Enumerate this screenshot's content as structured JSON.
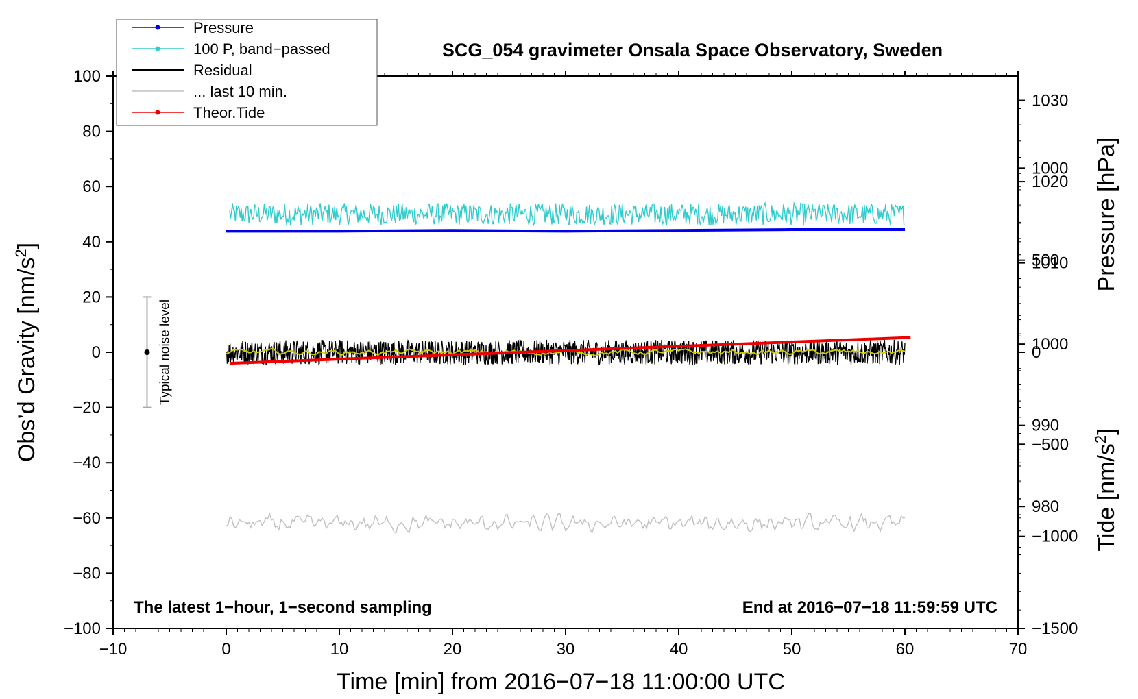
{
  "chart_data": {
    "type": "line",
    "title": "SCG_054 gravimeter Onsala Space Observatory, Sweden",
    "xlabel": "Time [min] from 2016−07−18 11:00:00 UTC",
    "ylabel_left": "Obs’d Gravity [nm/s",
    "ylabel_left_sup": "2",
    "ylabel_left_tail": "]",
    "ylabel_right_pressure": "Pressure [hPa]",
    "ylabel_right_tide": "Tide [nm/s",
    "ylabel_right_tide_sup": "2",
    "ylabel_right_tide_tail": "]",
    "xlim": [
      -10,
      70
    ],
    "ylim": [
      -100,
      100
    ],
    "pressure_lim": [
      965,
      1033
    ],
    "tide_lim": [
      -1500,
      1500
    ],
    "x_ticks": [
      {
        "v": -10,
        "label": "−10"
      },
      {
        "v": 0,
        "label": "0"
      },
      {
        "v": 10,
        "label": "10"
      },
      {
        "v": 20,
        "label": "20"
      },
      {
        "v": 30,
        "label": "30"
      },
      {
        "v": 40,
        "label": "40"
      },
      {
        "v": 50,
        "label": "50"
      },
      {
        "v": 60,
        "label": "60"
      },
      {
        "v": 70,
        "label": "70"
      }
    ],
    "y_ticks": [
      {
        "v": 100,
        "label": "100"
      },
      {
        "v": 80,
        "label": "80"
      },
      {
        "v": 60,
        "label": "60"
      },
      {
        "v": 40,
        "label": "40"
      },
      {
        "v": 20,
        "label": "20"
      },
      {
        "v": 0,
        "label": "0"
      },
      {
        "v": -20,
        "label": "−20"
      },
      {
        "v": -40,
        "label": "−40"
      },
      {
        "v": -60,
        "label": "−60"
      },
      {
        "v": -80,
        "label": "−80"
      },
      {
        "v": -100,
        "label": "−100"
      }
    ],
    "pressure_ticks": [
      {
        "v": 1030,
        "label": "1030"
      },
      {
        "v": 1020,
        "label": "1020"
      },
      {
        "v": 1010,
        "label": "1010"
      },
      {
        "v": 1000,
        "label": "1000"
      },
      {
        "v": 990,
        "label": "990"
      },
      {
        "v": 980,
        "label": "980"
      }
    ],
    "tide_ticks": [
      {
        "v": 1000,
        "label": "1000"
      },
      {
        "v": 500,
        "label": "500"
      },
      {
        "v": 0,
        "label": "0"
      },
      {
        "v": -500,
        "label": "−500"
      },
      {
        "v": -1000,
        "label": "−1000"
      },
      {
        "v": -1500,
        "label": "−1500"
      }
    ],
    "series": [
      {
        "name": "Pressure",
        "color": "#0000ee",
        "axis": "pressure",
        "marker": "dot",
        "x": [
          0,
          10,
          20,
          30,
          40,
          50,
          60
        ],
        "values": [
          1013.9,
          1013.9,
          1014.0,
          1013.9,
          1014.0,
          1014.1,
          1014.1
        ]
      },
      {
        "name": "100 P, band−passed",
        "color": "#33cccc",
        "axis": "left",
        "marker": "dot",
        "center": 50,
        "amplitude": 4,
        "x_range": [
          0.3,
          60
        ]
      },
      {
        "name": "Residual",
        "color": "#000000",
        "axis": "left",
        "marker": "none",
        "center": 0,
        "amplitude": 4.5,
        "x_range": [
          0,
          60
        ]
      },
      {
        "name": "... last 10 min.",
        "color": "#c0c0c0",
        "axis": "left",
        "marker": "none",
        "center": -62,
        "amplitude": 4,
        "x_range": [
          0,
          60
        ]
      },
      {
        "name": "Theor.Tide",
        "color": "#ee0000",
        "axis": "tide",
        "marker": "dot",
        "x": [
          0.3,
          60.5
        ],
        "values": [
          -60,
          80
        ]
      }
    ],
    "smoothed_residual_color": "#cccc00",
    "noise_level": {
      "label": "Typical noise level",
      "x": -7,
      "range": [
        -20,
        20
      ],
      "center": 0
    },
    "annotations": {
      "bottom_left": "The latest 1−hour, 1−second sampling",
      "bottom_right": "End at 2016−07−18 11:59:59 UTC"
    },
    "legend_position": "top-left",
    "grid": false
  }
}
